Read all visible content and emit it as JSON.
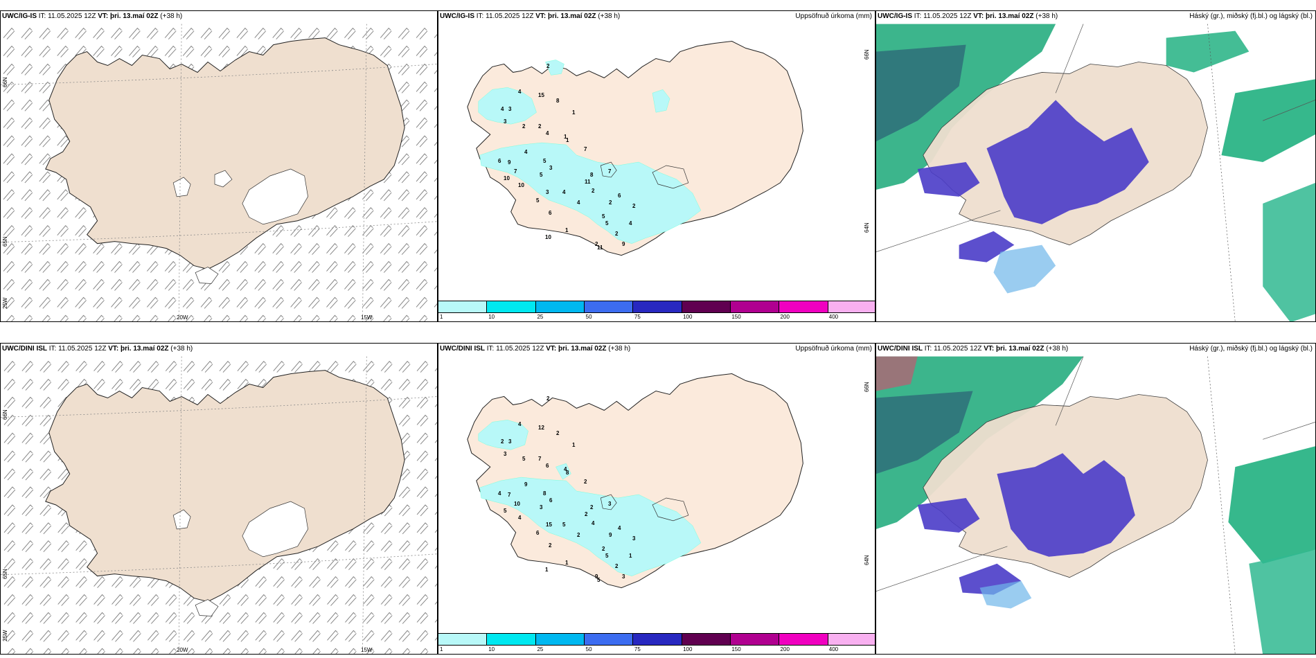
{
  "rows": [
    {
      "model": "UWC/IG-IS",
      "it_label": "IT:",
      "it_value": "11.05.2025 12Z",
      "vt_label": "VT:",
      "vt_value": "þri. 13.maí 02Z",
      "lead": "(+38 h)"
    },
    {
      "model": "UWC/DINI ISL",
      "it_label": "IT:",
      "it_value": "11.05.2025 12Z",
      "vt_label": "VT:",
      "vt_value": "þri. 13.maí 02Z",
      "lead": "(+38 h)"
    }
  ],
  "precip_title": "Uppsöfnuð úrkoma (mm)",
  "cloud_title": "Háský (gr.), miðský (fj.bl.) og lágský (bl.)",
  "axis_labels": {
    "lat_66": "66N",
    "lat_64": "64N",
    "lat_65": "65N",
    "lon_25": "25W",
    "lon_20": "20W",
    "lon_15": "15W"
  },
  "colorbar": {
    "ticks": [
      "1",
      "10",
      "25",
      "50",
      "75",
      "100",
      "150",
      "200",
      "400"
    ],
    "colors": [
      "#b8f8f8",
      "#00e8f0",
      "#00b8f0",
      "#3c6cf0",
      "#2828c0",
      "#600050",
      "#b00090",
      "#f000c0",
      "#f8b0f0"
    ]
  },
  "precip_labels_top": [
    "2",
    "4",
    "3",
    "15",
    "8",
    "1",
    "3",
    "4",
    "2",
    "2",
    "4",
    "1",
    "1",
    "7",
    "6",
    "4",
    "9",
    "5",
    "7",
    "3",
    "5",
    "10",
    "10",
    "11",
    "8",
    "7",
    "2",
    "4",
    "3",
    "5",
    "6",
    "4",
    "2",
    "6",
    "2",
    "5",
    "5",
    "4",
    "1",
    "10",
    "2",
    "2",
    "11",
    "9"
  ],
  "precip_labels_bottom": [
    "2",
    "4",
    "3",
    "12",
    "2",
    "1",
    "3",
    "2",
    "5",
    "7",
    "6",
    "4",
    "8",
    "2",
    "4",
    "9",
    "7",
    "8",
    "10",
    "6",
    "3",
    "5",
    "4",
    "2",
    "2",
    "3",
    "4",
    "5",
    "15",
    "6",
    "2",
    "2",
    "9",
    "4",
    "3",
    "2",
    "5",
    "1",
    "1",
    "1",
    "2",
    "9",
    "5",
    "3"
  ]
}
